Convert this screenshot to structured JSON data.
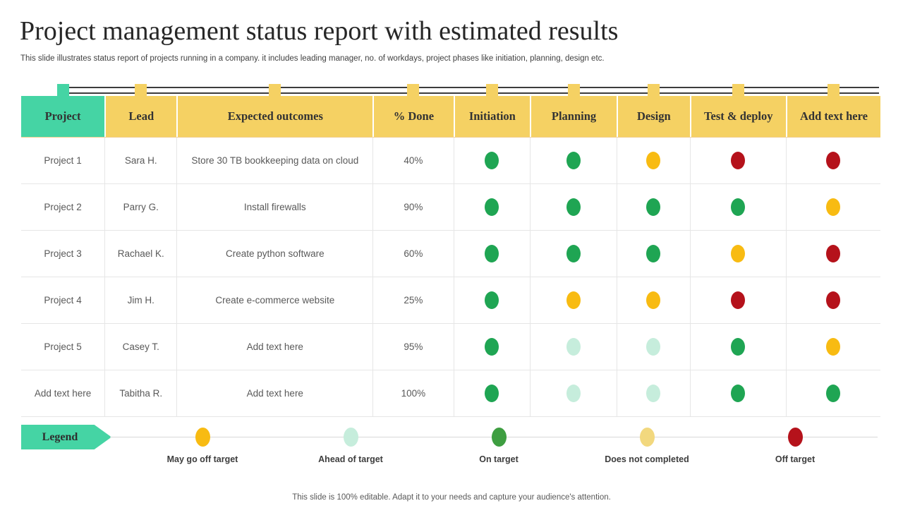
{
  "slide": {
    "title": "Project management status report with estimated results",
    "subtitle": "This slide illustrates status report of projects running in a company. it includes leading manager, no. of workdays, project phases like initiation, planning, design etc.",
    "footer": "This slide is 100% editable.  Adapt it to your needs and capture your audience's attention."
  },
  "colors": {
    "accent-teal": "#45D4A4",
    "header-yellow": "#F5D163",
    "dot-green": "#1FA553",
    "dot-yellow": "#F8BB12",
    "dot-red": "#B5121B",
    "dot-light-teal": "#C6EDDC",
    "dot-pale-yellow": "#F2D87E",
    "legend-green": "#3E9E41"
  },
  "status_colors": {
    "on-target": "#1FA553",
    "may-go-off-target": "#F8BB12",
    "off-target": "#B5121B",
    "ahead-of-target": "#C6EDDC"
  },
  "table": {
    "headers": [
      "Project",
      "Lead",
      "Expected outcomes",
      "% Done",
      "Initiation",
      "Planning",
      "Design",
      "Test & deploy",
      "Add text here"
    ],
    "rows": [
      {
        "project": "Project 1",
        "lead": "Sara H.",
        "outcome": "Store 30 TB bookkeeping data on cloud",
        "done": "40%",
        "statuses": [
          "on-target",
          "on-target",
          "may-go-off-target",
          "off-target",
          "off-target"
        ]
      },
      {
        "project": "Project 2",
        "lead": "Parry G.",
        "outcome": "Install firewalls",
        "done": "90%",
        "statuses": [
          "on-target",
          "on-target",
          "on-target",
          "on-target",
          "may-go-off-target"
        ]
      },
      {
        "project": "Project 3",
        "lead": "Rachael K.",
        "outcome": "Create python software",
        "done": "60%",
        "statuses": [
          "on-target",
          "on-target",
          "on-target",
          "may-go-off-target",
          "off-target"
        ]
      },
      {
        "project": "Project 4",
        "lead": "Jim H.",
        "outcome": "Create e-commerce website",
        "done": "25%",
        "statuses": [
          "on-target",
          "may-go-off-target",
          "may-go-off-target",
          "off-target",
          "off-target"
        ]
      },
      {
        "project": "Project 5",
        "lead": "Casey T.",
        "outcome": "Add text here",
        "done": "95%",
        "statuses": [
          "on-target",
          "ahead-of-target",
          "ahead-of-target",
          "on-target",
          "may-go-off-target"
        ]
      },
      {
        "project": "Add text here",
        "lead": "Tabitha R.",
        "outcome": "Add text here",
        "done": "100%",
        "statuses": [
          "on-target",
          "ahead-of-target",
          "ahead-of-target",
          "on-target",
          "on-target"
        ]
      }
    ]
  },
  "legend": {
    "label": "Legend",
    "items": [
      {
        "label": "May go off target",
        "color": "#F8BB12"
      },
      {
        "label": "Ahead of target",
        "color": "#C6EDDC"
      },
      {
        "label": "On target",
        "color": "#3E9E41"
      },
      {
        "label": "Does not completed",
        "color": "#F2D87E"
      },
      {
        "label": "Off target",
        "color": "#B5121B"
      }
    ]
  }
}
